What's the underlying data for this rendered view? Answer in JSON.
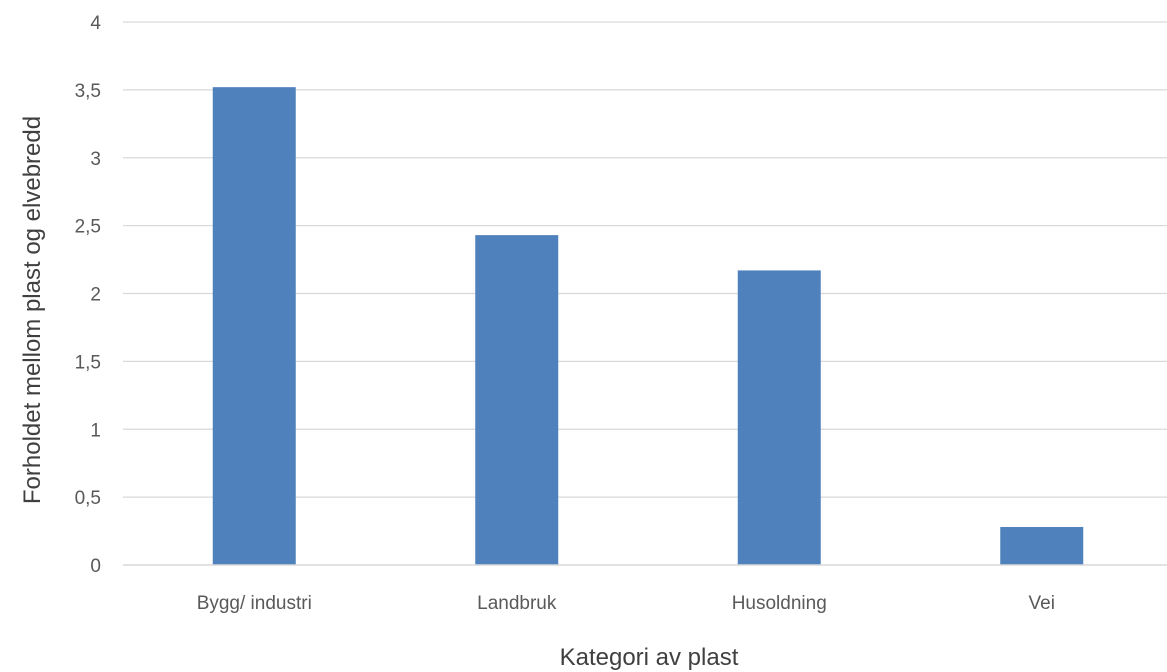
{
  "chart_data": {
    "type": "bar",
    "title": "",
    "xlabel": "Kategori av plast",
    "ylabel": "Forholdet mellom plast og elvebredd",
    "categories": [
      "Bygg/ industri",
      "Landbruk",
      "Husoldning",
      "Vei"
    ],
    "values": [
      3.52,
      2.43,
      2.17,
      0.28
    ],
    "ylim": [
      0,
      4
    ],
    "yticks": [
      0,
      0.5,
      1,
      1.5,
      2,
      2.5,
      3,
      3.5,
      4
    ],
    "ytick_labels": [
      "0",
      "0,5",
      "1",
      "1,5",
      "2",
      "2,5",
      "3",
      "3,5",
      "4"
    ],
    "grid": true,
    "legend": "none",
    "colors": {
      "bar": "#4f81bd",
      "grid": "#d9d9d9",
      "axis": "#d9d9d9",
      "tick_text": "#595959",
      "title_text": "#404040"
    }
  }
}
